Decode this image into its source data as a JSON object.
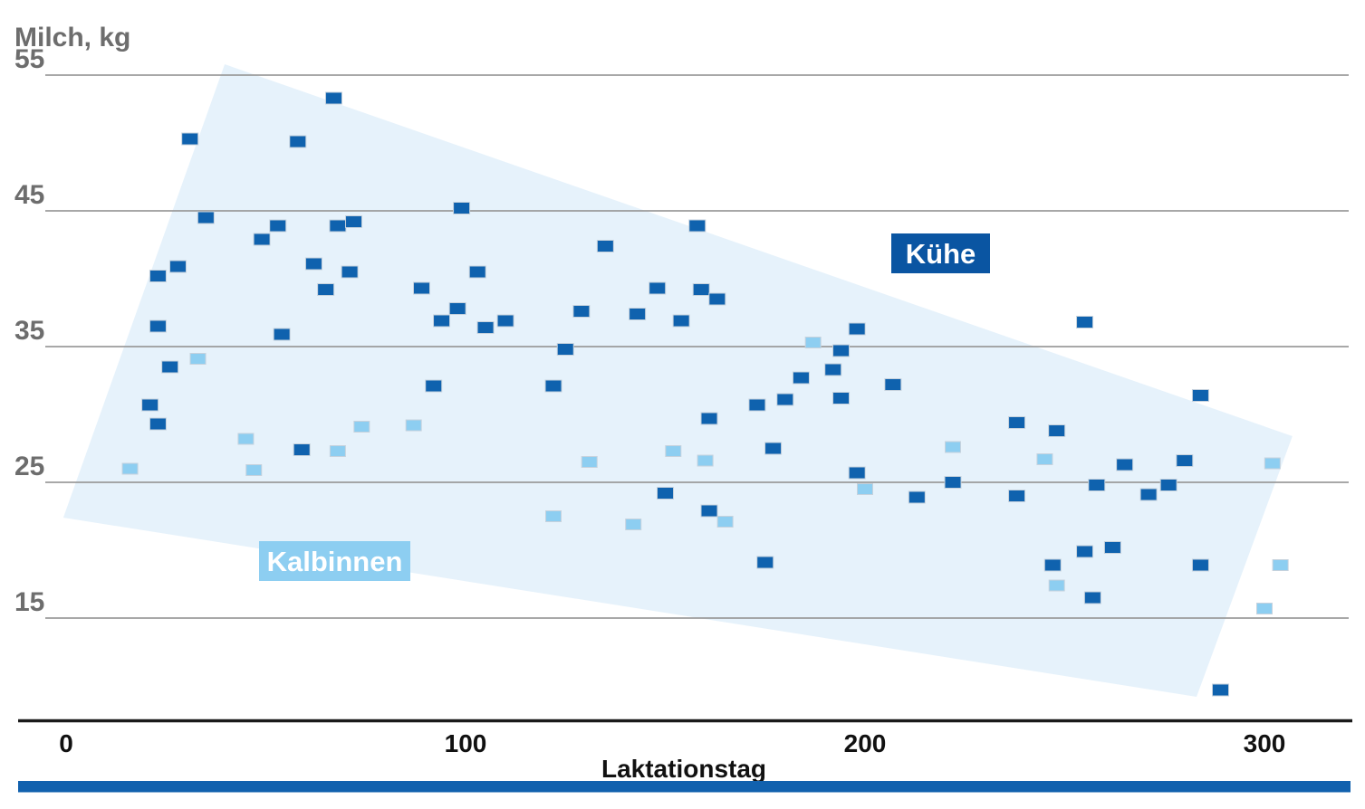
{
  "chart_data": {
    "type": "scatter",
    "title": "Milch, kg",
    "xlabel": "Laktationstag",
    "x_axis": {
      "min": 0,
      "max": 320,
      "ticks": [
        0,
        100,
        200,
        300
      ]
    },
    "y_axis": {
      "unit": "kg",
      "min": 7,
      "max": 57,
      "ticks": [
        55,
        45,
        35,
        25,
        15
      ],
      "grid": true
    },
    "legend_position": "inside-plot",
    "series": [
      {
        "name": "Kühe",
        "marker": "square",
        "marker_color": "#0f62ae",
        "points_day_kg": [
          [
            67,
            53.3
          ],
          [
            31,
            50.3
          ],
          [
            58,
            50.1
          ],
          [
            35,
            44.5
          ],
          [
            53,
            43.9
          ],
          [
            49,
            42.9
          ],
          [
            68,
            43.9
          ],
          [
            72,
            44.2
          ],
          [
            99,
            45.2
          ],
          [
            62,
            41.1
          ],
          [
            71,
            40.5
          ],
          [
            28,
            40.9
          ],
          [
            23,
            40.2
          ],
          [
            65,
            39.2
          ],
          [
            89,
            39.3
          ],
          [
            103,
            40.5
          ],
          [
            98,
            37.8
          ],
          [
            94,
            36.9
          ],
          [
            105,
            36.4
          ],
          [
            23,
            36.5
          ],
          [
            54,
            35.9
          ],
          [
            26,
            33.5
          ],
          [
            92,
            32.1
          ],
          [
            158,
            43.9
          ],
          [
            135,
            42.4
          ],
          [
            148,
            39.3
          ],
          [
            159,
            39.2
          ],
          [
            163,
            38.5
          ],
          [
            129,
            37.6
          ],
          [
            110,
            36.9
          ],
          [
            143,
            37.4
          ],
          [
            154,
            36.9
          ],
          [
            125,
            34.8
          ],
          [
            198,
            36.3
          ],
          [
            194,
            34.7
          ],
          [
            192,
            33.3
          ],
          [
            184,
            32.7
          ],
          [
            207,
            32.2
          ],
          [
            122,
            32.1
          ],
          [
            255,
            36.8
          ],
          [
            21,
            30.7
          ],
          [
            23,
            29.3
          ],
          [
            59,
            27.4
          ],
          [
            173,
            30.7
          ],
          [
            180,
            31.1
          ],
          [
            194,
            31.2
          ],
          [
            161,
            29.7
          ],
          [
            177,
            27.5
          ],
          [
            198,
            25.7
          ],
          [
            150,
            24.2
          ],
          [
            213,
            23.9
          ],
          [
            161,
            22.9
          ],
          [
            175,
            19.1
          ],
          [
            284,
            31.4
          ],
          [
            238,
            29.4
          ],
          [
            248,
            28.8
          ],
          [
            265,
            26.3
          ],
          [
            280,
            26.6
          ],
          [
            222,
            25.0
          ],
          [
            258,
            24.8
          ],
          [
            276,
            24.8
          ],
          [
            238,
            24.0
          ],
          [
            271,
            24.1
          ],
          [
            262,
            20.2
          ],
          [
            255,
            19.9
          ],
          [
            247,
            18.9
          ],
          [
            284,
            18.9
          ],
          [
            257,
            16.5
          ],
          [
            289,
            9.7
          ]
        ]
      },
      {
        "name": "Kalbinnen",
        "marker": "square",
        "marker_color": "#8dcef1",
        "points_day_kg": [
          [
            33,
            34.1
          ],
          [
            16,
            26.0
          ],
          [
            45,
            28.2
          ],
          [
            47,
            25.9
          ],
          [
            68,
            27.3
          ],
          [
            74,
            29.1
          ],
          [
            87,
            29.2
          ],
          [
            187,
            35.3
          ],
          [
            152,
            27.3
          ],
          [
            160,
            26.6
          ],
          [
            131,
            26.5
          ],
          [
            200,
            24.5
          ],
          [
            122,
            22.5
          ],
          [
            142,
            21.9
          ],
          [
            165,
            22.1
          ],
          [
            222,
            27.6
          ],
          [
            245,
            26.7
          ],
          [
            302,
            26.4
          ],
          [
            304,
            18.9
          ],
          [
            248,
            17.4
          ],
          [
            300,
            15.7
          ]
        ]
      }
    ],
    "envelope_region": {
      "fill": "#e6f2fb",
      "vertices_day_kg": [
        [
          39.7,
          55.8
        ],
        [
          307.0,
          28.4
        ],
        [
          283.0,
          9.2
        ],
        [
          -0.7,
          22.4
        ]
      ]
    },
    "legend": {
      "kuehe": {
        "label": "Kühe",
        "bg": "#0a55a2",
        "text_color": "#ffffff"
      },
      "kalbinnen": {
        "label": "Kalbinnen",
        "bg": "#8dcef1",
        "text_color": "#ffffff"
      }
    },
    "colors": {
      "gridline": "#9b9b9b",
      "axis_line": "#1a1a1a",
      "title_text": "#6d6d6d",
      "tick_text": "#111111",
      "bottom_bar": "#1161ae",
      "marker_stroke": "#c6d2dd"
    }
  }
}
